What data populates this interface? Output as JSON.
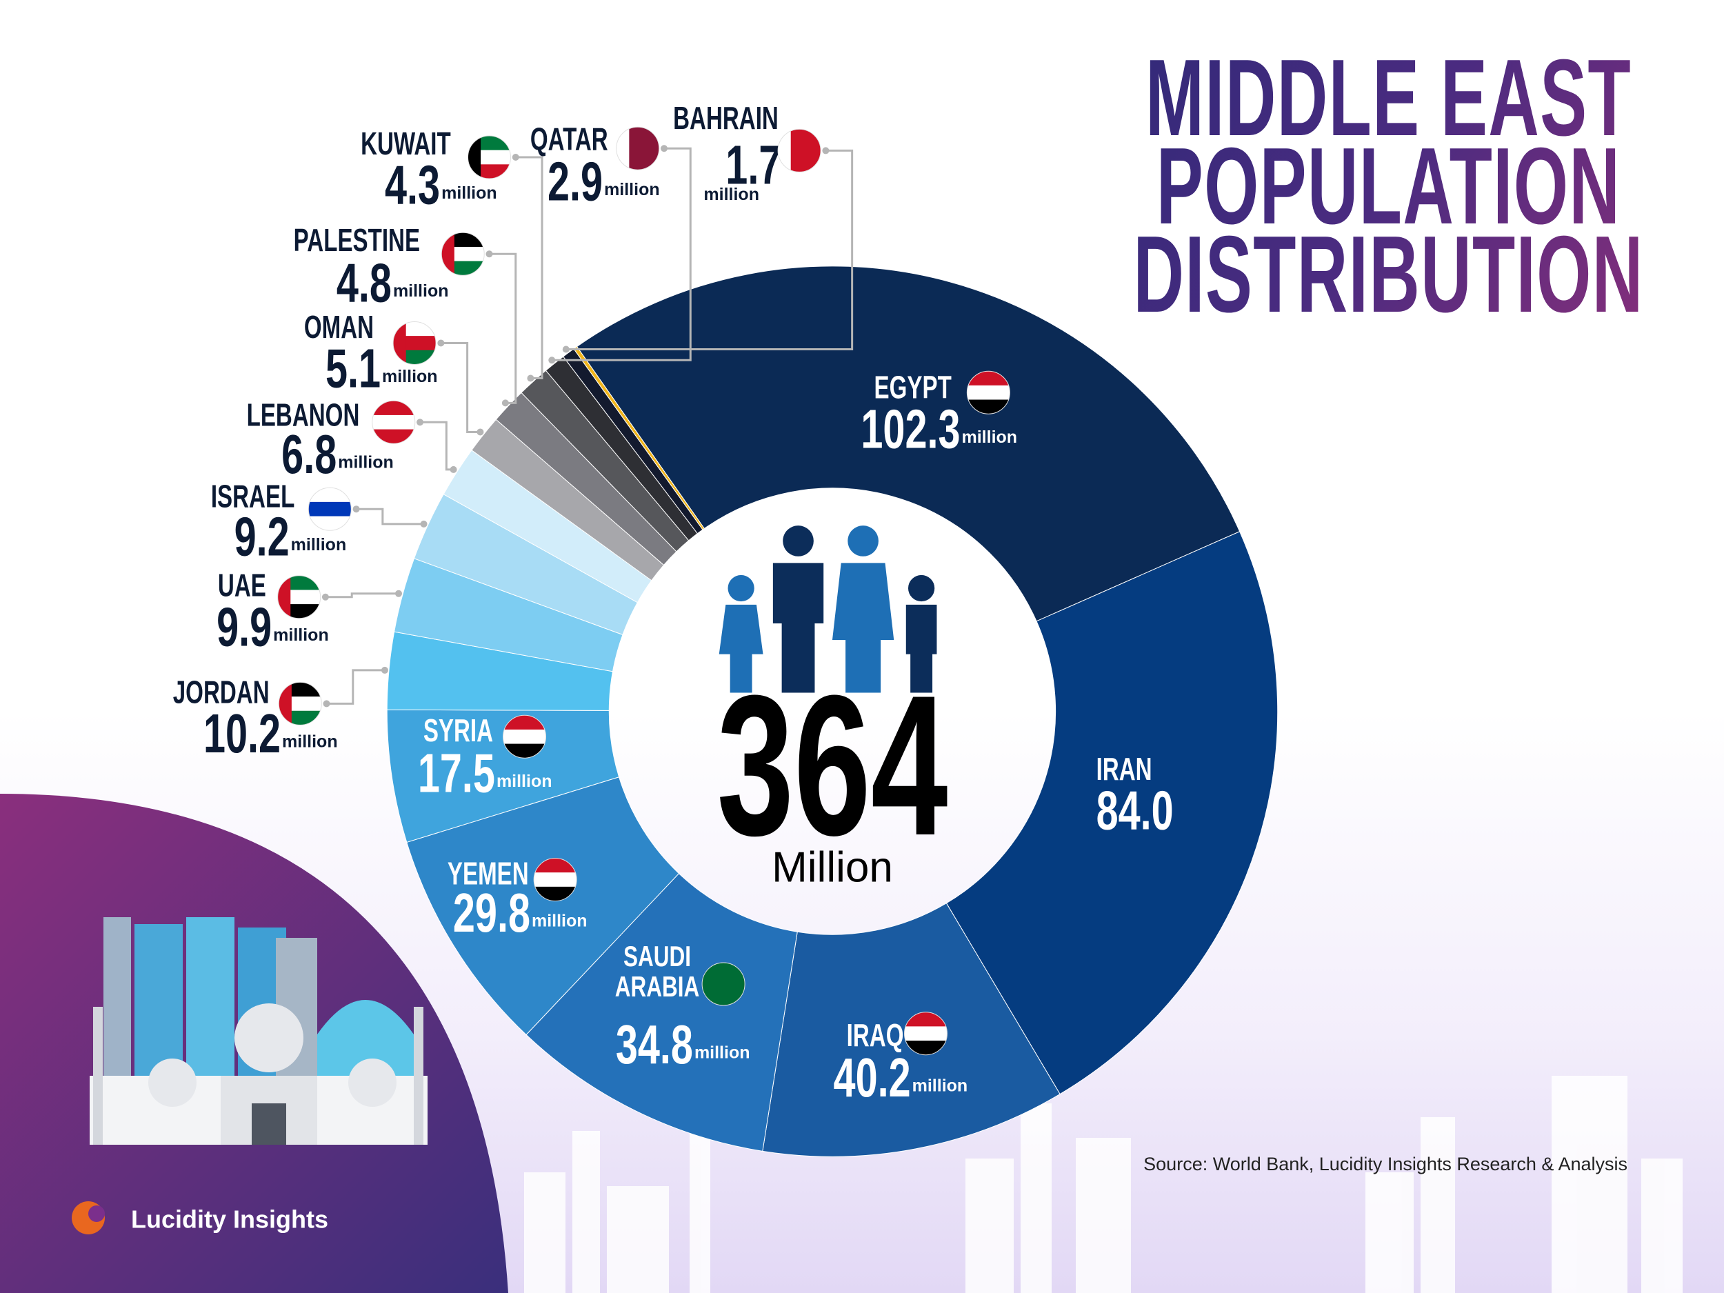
{
  "chart_data": {
    "type": "pie",
    "donut": true,
    "title": "MIDDLE EAST POPULATION DISTRIBUTION",
    "total": 364,
    "center_label": "Million",
    "categories": [
      "EGYPT",
      "IRAN",
      "IRAQ",
      "SAUDI ARABIA",
      "YEMEN",
      "SYRIA",
      "JORDAN",
      "UAE",
      "ISRAEL",
      "LEBANON",
      "OMAN",
      "PALESTINE",
      "KUWAIT",
      "QATAR",
      "BAHRAIN",
      null
    ],
    "values": [
      102.3,
      84.0,
      40.2,
      34.8,
      29.8,
      17.5,
      10.2,
      9.9,
      9.2,
      6.8,
      5.1,
      4.8,
      4.3,
      2.9,
      1.7,
      0.5
    ],
    "value_labels": [
      "102.3",
      "84.0",
      "40.2",
      "34.8",
      "29.8",
      "17.5",
      "10.2",
      "9.9",
      "9.2",
      "6.8",
      "5.1",
      "4.8",
      "4.3",
      "2.9",
      "1.7",
      null
    ],
    "units": [
      "million",
      null,
      "million",
      "million",
      "million",
      "million",
      "million",
      "million",
      "million",
      "million",
      "million",
      "million",
      "million",
      "million",
      "million",
      null
    ],
    "colors": [
      "#0b2a55",
      "#053c80",
      "#1a5ba1",
      "#2471b9",
      "#2e87c9",
      "#3fa4dd",
      "#53c1ef",
      "#7dcdf2",
      "#a8dcf5",
      "#d2edfa",
      "#a7a7ab",
      "#7b7b81",
      "#56575b",
      "#2e2f34",
      "#131a2e",
      "#f1b51b"
    ],
    "source": "Source: World Bank, Lucidity Insights Research & Analysis",
    "brand": "Lucidity Insights"
  }
}
